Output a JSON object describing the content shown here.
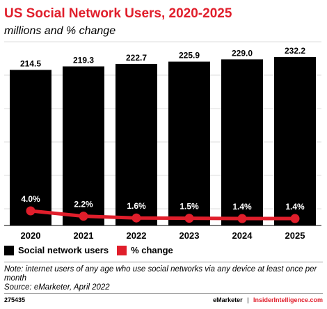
{
  "header": {
    "title": "US Social Network Users, 2020-2025",
    "subtitle": "millions and % change"
  },
  "chart_data": {
    "type": "bar",
    "categories": [
      "2020",
      "2021",
      "2022",
      "2023",
      "2024",
      "2025"
    ],
    "series": [
      {
        "name": "Social network users",
        "type": "bar",
        "values": [
          214.5,
          219.3,
          222.7,
          225.9,
          229.0,
          232.2
        ],
        "labels": [
          "214.5",
          "219.3",
          "222.7",
          "225.9",
          "229.0",
          "232.2"
        ],
        "color": "#000000"
      },
      {
        "name": "% change",
        "type": "line",
        "values": [
          4.0,
          2.2,
          1.6,
          1.5,
          1.4,
          1.4
        ],
        "labels": [
          "4.0%",
          "2.2%",
          "1.6%",
          "1.5%",
          "1.4%",
          "1.4%"
        ],
        "color": "#e01e2b"
      }
    ],
    "grid": true
  },
  "legend": {
    "items": [
      {
        "label": "Social network users",
        "color": "#000000"
      },
      {
        "label": "% change",
        "color": "#e01e2b"
      }
    ]
  },
  "footnote": {
    "note": "Note: internet users of any age who use social networks via any device at least once per month",
    "source": "Source: eMarketer, April 2022"
  },
  "footer": {
    "id": "275435",
    "brand1": "eMarketer",
    "separator": "|",
    "brand2": "InsiderIntelligence.com"
  }
}
